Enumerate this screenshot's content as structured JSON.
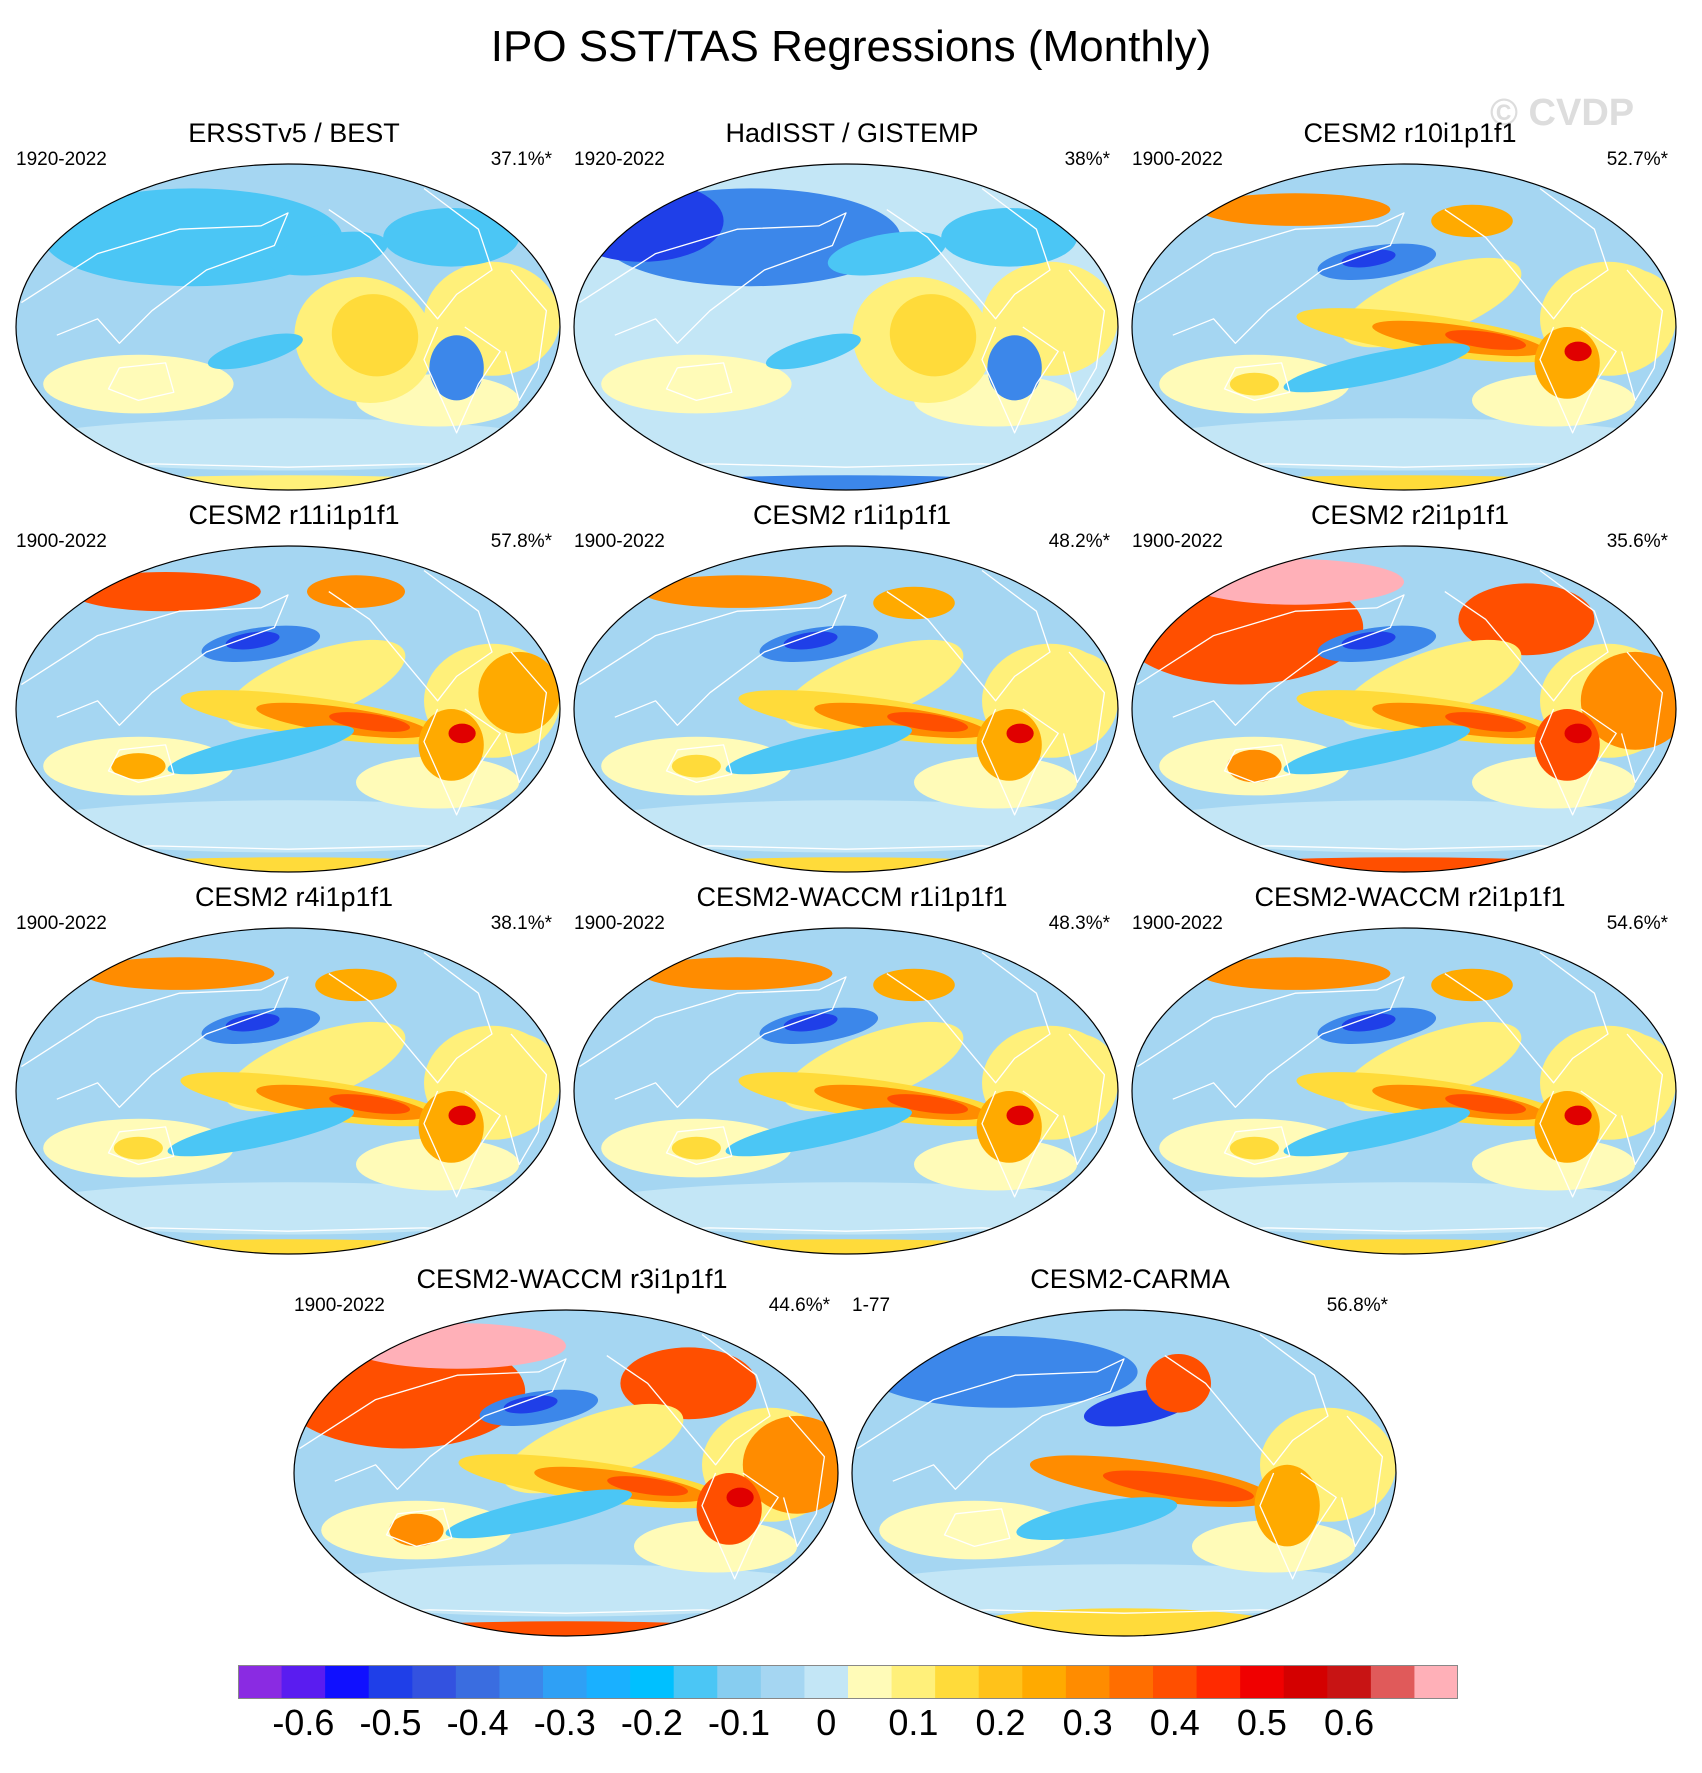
{
  "title": "IPO SST/TAS Regressions (Monthly)",
  "watermark": "© CVDP",
  "panels": [
    {
      "title": "ERSSTv5 / BEST",
      "period": "1920-2022",
      "pct": "37.1%*",
      "variant": "obs1"
    },
    {
      "title": "HadISST / GISTEMP",
      "period": "1920-2022",
      "pct": "38%*",
      "variant": "obs2"
    },
    {
      "title": "CESM2 r10i1p1f1",
      "period": "1900-2022",
      "pct": "52.7%*",
      "variant": "model"
    },
    {
      "title": "CESM2 r11i1p1f1",
      "period": "1900-2022",
      "pct": "57.8%*",
      "variant": "model_warm"
    },
    {
      "title": "CESM2 r1i1p1f1",
      "period": "1900-2022",
      "pct": "48.2%*",
      "variant": "model"
    },
    {
      "title": "CESM2 r2i1p1f1",
      "period": "1900-2022",
      "pct": "35.6%*",
      "variant": "model_hot"
    },
    {
      "title": "CESM2 r4i1p1f1",
      "period": "1900-2022",
      "pct": "38.1%*",
      "variant": "model"
    },
    {
      "title": "CESM2-WACCM r1i1p1f1",
      "period": "1900-2022",
      "pct": "48.3%*",
      "variant": "model"
    },
    {
      "title": "CESM2-WACCM r2i1p1f1",
      "period": "1900-2022",
      "pct": "54.6%*",
      "variant": "model"
    },
    {
      "title": "CESM2-WACCM r3i1p1f1",
      "period": "1900-2022",
      "pct": "44.6%*",
      "variant": "model_hot"
    },
    {
      "title": "CESM2-CARMA",
      "period": "1-77",
      "pct": "56.8%*",
      "variant": "carma"
    }
  ],
  "colorbar": {
    "colors": [
      "#8a2be2",
      "#5a1cf0",
      "#1010ff",
      "#1f3fe8",
      "#3352e0",
      "#3a6de0",
      "#3c87ea",
      "#2fa0f5",
      "#1ab0ff",
      "#00c0ff",
      "#4bc6f5",
      "#87cdf0",
      "#a5d6f2",
      "#c3e6f6",
      "#fffbb8",
      "#fff07a",
      "#ffdb3a",
      "#ffc21a",
      "#ffaa00",
      "#ff8c00",
      "#ff6e00",
      "#ff4f00",
      "#ff2a00",
      "#f00000",
      "#d40000",
      "#c81414",
      "#e05a5a",
      "#ffb0b8"
    ],
    "labels": [
      "-0.6",
      "-0.5",
      "-0.4",
      "-0.3",
      "-0.2",
      "-0.1",
      "0",
      "0.1",
      "0.2",
      "0.3",
      "0.4",
      "0.5",
      "0.6"
    ]
  }
}
